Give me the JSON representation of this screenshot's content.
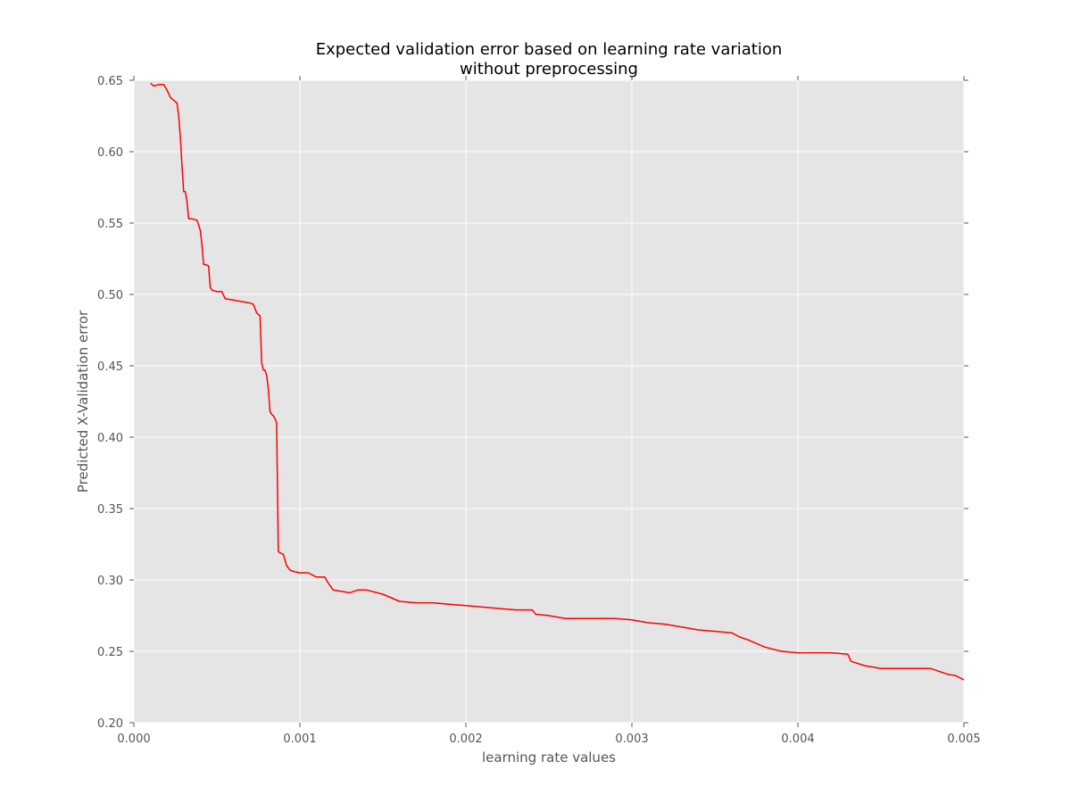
{
  "chart_data": {
    "type": "line",
    "title_lines": [
      "Expected validation error based on learning rate variation",
      "without preprocessing"
    ],
    "xlabel": "learning rate values",
    "ylabel": "Predicted X-Validation error",
    "xlim": [
      0.0,
      0.005
    ],
    "ylim": [
      0.2,
      0.65
    ],
    "xticks": [
      0.0,
      0.001,
      0.002,
      0.003,
      0.004,
      0.005
    ],
    "xtick_labels": [
      "0.000",
      "0.001",
      "0.002",
      "0.003",
      "0.004",
      "0.005"
    ],
    "yticks": [
      0.2,
      0.25,
      0.3,
      0.35,
      0.4,
      0.45,
      0.5,
      0.55,
      0.6,
      0.65
    ],
    "ytick_labels": [
      "0.20",
      "0.25",
      "0.30",
      "0.35",
      "0.40",
      "0.45",
      "0.50",
      "0.55",
      "0.60",
      "0.65"
    ],
    "grid": true,
    "background": "#e5e5e5",
    "series": [
      {
        "color": "#ff0000",
        "x": [
          0.0001,
          0.00012,
          0.00015,
          0.00018,
          0.0002,
          0.00022,
          0.00024,
          0.00026,
          0.00027,
          0.00028,
          0.00029,
          0.0003,
          0.00031,
          0.00032,
          0.00033,
          0.00034,
          0.00035,
          0.00038,
          0.0004,
          0.00041,
          0.00042,
          0.00043,
          0.00045,
          0.00046,
          0.00047,
          0.0005,
          0.00053,
          0.00055,
          0.0006,
          0.00065,
          0.0007,
          0.00072,
          0.00074,
          0.00076,
          0.00077,
          0.00078,
          0.00079,
          0.0008,
          0.00081,
          0.00082,
          0.00083,
          0.00084,
          0.00085,
          0.00086,
          0.00087,
          0.00088,
          0.0009,
          0.00092,
          0.00094,
          0.00096,
          0.001,
          0.00105,
          0.0011,
          0.00115,
          0.00117,
          0.0012,
          0.00125,
          0.0013,
          0.00135,
          0.0014,
          0.0015,
          0.0016,
          0.0017,
          0.0018,
          0.0019,
          0.002,
          0.0021,
          0.0022,
          0.0023,
          0.0024,
          0.00242,
          0.0025,
          0.0026,
          0.0027,
          0.0028,
          0.0029,
          0.003,
          0.00305,
          0.0031,
          0.0032,
          0.0033,
          0.0034,
          0.0035,
          0.0036,
          0.00365,
          0.0037,
          0.0038,
          0.0039,
          0.004,
          0.0041,
          0.0042,
          0.0043,
          0.00432,
          0.0044,
          0.0045,
          0.0046,
          0.0047,
          0.0048,
          0.00485,
          0.0049,
          0.00495,
          0.005
        ],
        "y": [
          0.648,
          0.646,
          0.647,
          0.647,
          0.643,
          0.638,
          0.636,
          0.634,
          0.625,
          0.61,
          0.59,
          0.572,
          0.572,
          0.565,
          0.553,
          0.553,
          0.553,
          0.552,
          0.545,
          0.535,
          0.521,
          0.521,
          0.52,
          0.505,
          0.503,
          0.502,
          0.502,
          0.497,
          0.496,
          0.495,
          0.494,
          0.493,
          0.487,
          0.485,
          0.452,
          0.447,
          0.447,
          0.443,
          0.434,
          0.418,
          0.416,
          0.415,
          0.413,
          0.41,
          0.32,
          0.319,
          0.318,
          0.31,
          0.307,
          0.306,
          0.305,
          0.305,
          0.302,
          0.302,
          0.298,
          0.293,
          0.292,
          0.291,
          0.293,
          0.293,
          0.29,
          0.285,
          0.284,
          0.284,
          0.283,
          0.282,
          0.281,
          0.28,
          0.279,
          0.279,
          0.276,
          0.275,
          0.273,
          0.273,
          0.273,
          0.273,
          0.272,
          0.271,
          0.27,
          0.269,
          0.267,
          0.265,
          0.264,
          0.263,
          0.26,
          0.258,
          0.253,
          0.25,
          0.249,
          0.249,
          0.249,
          0.248,
          0.243,
          0.24,
          0.238,
          0.238,
          0.238,
          0.238,
          0.236,
          0.234,
          0.233,
          0.23
        ]
      }
    ]
  }
}
